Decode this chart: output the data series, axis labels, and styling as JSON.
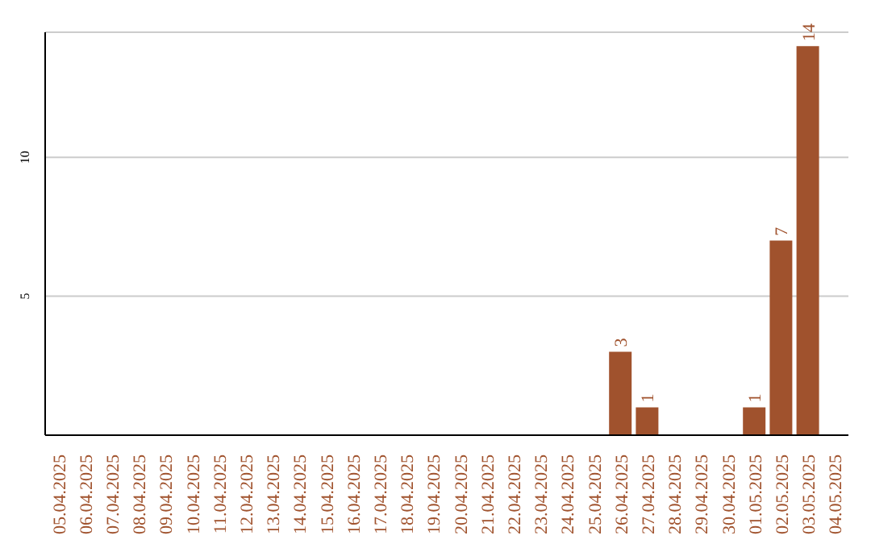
{
  "chart_data": {
    "type": "bar",
    "categories": [
      "05.04.2025",
      "06.04.2025",
      "07.04.2025",
      "08.04.2025",
      "09.04.2025",
      "10.04.2025",
      "11.04.2025",
      "12.04.2025",
      "13.04.2025",
      "14.04.2025",
      "15.04.2025",
      "16.04.2025",
      "17.04.2025",
      "18.04.2025",
      "19.04.2025",
      "20.04.2025",
      "21.04.2025",
      "22.04.2025",
      "23.04.2025",
      "24.04.2025",
      "25.04.2025",
      "26.04.2025",
      "27.04.2025",
      "28.04.2025",
      "29.04.2025",
      "30.04.2025",
      "01.05.2025",
      "02.05.2025",
      "03.05.2025",
      "04.05.2025"
    ],
    "values": [
      0,
      0,
      0,
      0,
      0,
      0,
      0,
      0,
      0,
      0,
      0,
      0,
      0,
      0,
      0,
      0,
      0,
      0,
      0,
      0,
      0,
      3,
      1,
      0,
      0,
      0,
      1,
      7,
      14,
      0
    ],
    "value_labels": [
      null,
      null,
      null,
      null,
      null,
      null,
      null,
      null,
      null,
      null,
      null,
      null,
      null,
      null,
      null,
      null,
      null,
      null,
      null,
      null,
      null,
      "3",
      "1",
      null,
      null,
      null,
      "1",
      "7",
      "14",
      null
    ],
    "color": "#a0522d",
    "ylim": [
      0,
      14.5
    ],
    "yticks": [
      5,
      10
    ],
    "grid": "y"
  }
}
